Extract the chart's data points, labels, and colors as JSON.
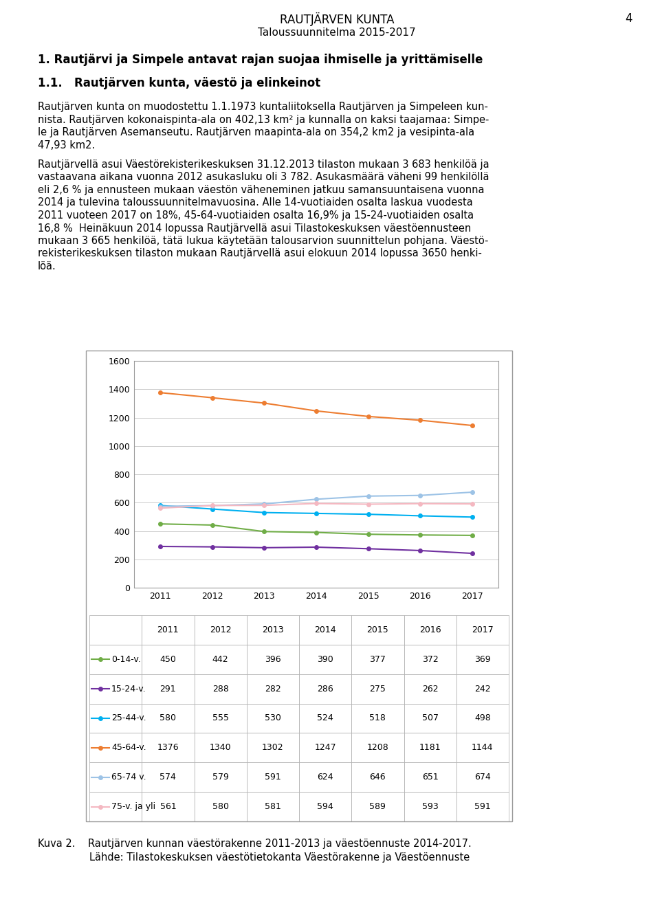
{
  "title_main": "RAUTJÄRVEN KUNTA",
  "title_page": "4",
  "title_sub": "Taloussuunnitelma 2015-2017",
  "heading1": "1. Rautjärvi ja Simpele antavat rajan suojaa ihmiselle ja yrittämiselle",
  "heading2": "1.1.   Rautjärven kunta, väestö ja elinkeinot",
  "para1_lines": [
    "Rautjärven kunta on muodostettu 1.1.1973 kuntaliitoksella Rautjärven ja Simpeleen kun-",
    "nista. Rautjärven kokonaispinta-ala on 402,13 km² ja kunnalla on kaksi taajamaa: Simpe-",
    "le ja Rautjärven Asemanseutu. Rautjärven maapinta-ala on 354,2 km2 ja vesipinta-ala",
    "47,93 km2."
  ],
  "para2_lines": [
    "Rautjärvellä asui Väestörekisterikeskuksen 31.12.2013 tilaston mukaan 3 683 henkilöä ja",
    "vastaavana aikana vuonna 2012 asukasluku oli 3 782. Asukasmäärä väheni 99 henkilöllä",
    "eli 2,6 % ja ennusteen mukaan väestön väheneminen jatkuu samansuuntaisena vuonna",
    "2014 ja tulevina taloussuunnitelmavuosina. Alle 14-vuotiaiden osalta laskua vuodesta",
    "2011 vuoteen 2017 on 18%, 45-64-vuotiaiden osalta 16,9% ja 15-24-vuotiaiden osalta",
    "16,8 %  Heinäkuun 2014 lopussa Rautjärvellä asui Tilastokeskuksen väestöennusteen",
    "mukaan 3 665 henkilöä, tätä lukua käytetään talousarvion suunnittelun pohjana. Väestö-",
    "rekisterikeskuksen tilaston mukaan Rautjärvellä asui elokuun 2014 lopussa 3650 henki-",
    "löä."
  ],
  "caption_line1": "Kuva 2.    Rautjärven kunnan väestörakenne 2011-2013 ja väestöennuste 2014-2017.",
  "caption_line2": "Lähde: Tilastokeskuksen väestötietokanta Väestörakenne ja Väestöennuste",
  "years": [
    2011,
    2012,
    2013,
    2014,
    2015,
    2016,
    2017
  ],
  "series": [
    {
      "label": "0-14-v.",
      "color": "#70AD47",
      "values": [
        450,
        442,
        396,
        390,
        377,
        372,
        369
      ]
    },
    {
      "label": "15-24-v.",
      "color": "#7030A0",
      "values": [
        291,
        288,
        282,
        286,
        275,
        262,
        242
      ]
    },
    {
      "label": "25-44-v.",
      "color": "#00B0F0",
      "values": [
        580,
        555,
        530,
        524,
        518,
        507,
        498
      ]
    },
    {
      "label": "45-64-v.",
      "color": "#ED7D31",
      "values": [
        1376,
        1340,
        1302,
        1247,
        1208,
        1181,
        1144
      ]
    },
    {
      "label": "65-74 v.",
      "color": "#9DC3E6",
      "values": [
        574,
        579,
        591,
        624,
        646,
        651,
        674
      ]
    },
    {
      "label": "75-v. ja yli",
      "color": "#F4B8C1",
      "values": [
        561,
        580,
        581,
        594,
        589,
        593,
        591
      ]
    }
  ],
  "ylim": [
    0,
    1600
  ],
  "yticks": [
    0,
    200,
    400,
    600,
    800,
    1000,
    1200,
    1400,
    1600
  ],
  "bg_color": "#FFFFFF",
  "grid_color": "#CCCCCC",
  "border_color": "#999999",
  "table_border": "#AAAAAA"
}
